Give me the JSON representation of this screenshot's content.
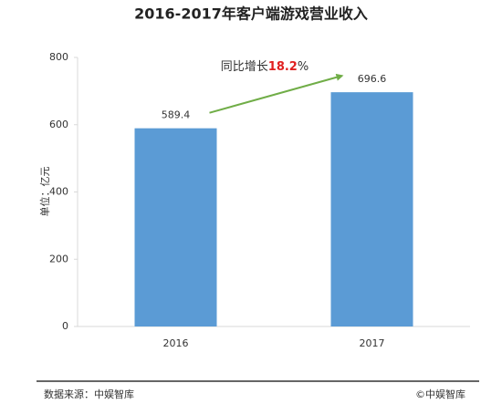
{
  "chart_data": {
    "type": "bar",
    "title": "2016-2017年客户端游戏营业收入",
    "y_label": "单位：亿元",
    "categories": [
      "2016",
      "2017"
    ],
    "values": [
      589.4,
      696.6
    ],
    "color": "#5b9bd5",
    "ylim": [
      0,
      800
    ],
    "yticks": [
      0,
      200,
      400,
      600,
      800
    ],
    "annotation": {
      "prefix": "同比增长",
      "value": "18.2",
      "suffix": "%",
      "value_color": "#e02020",
      "arrow_color": "#70ad47"
    }
  },
  "footer": {
    "source": "数据来源：中娱智库",
    "copyright": "©中娱智库"
  }
}
